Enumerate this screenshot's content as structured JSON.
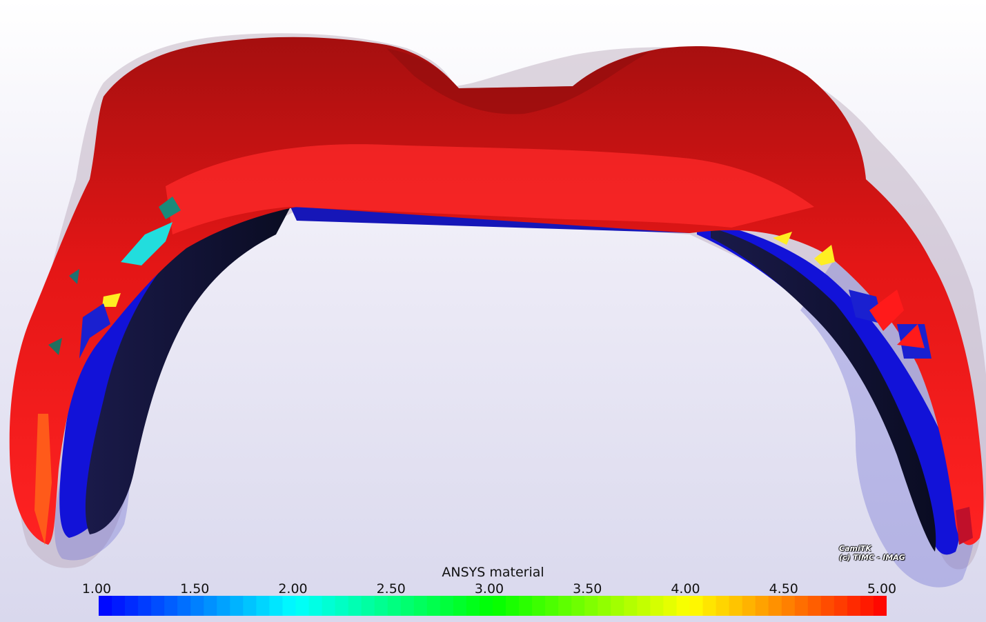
{
  "viewer": {
    "watermark_line1": "CamiTK",
    "watermark_line2": "(c) TIMC - IMAG"
  },
  "scalar_bar": {
    "title": "ANSYS material",
    "ticks": [
      "1.00",
      "1.50",
      "2.00",
      "2.50",
      "3.00",
      "3.50",
      "4.00",
      "4.50",
      "5.00"
    ],
    "range": [
      1.0,
      5.0
    ],
    "color_stops": [
      "#0000ff",
      "#00ffff",
      "#00ff00",
      "#ffff00",
      "#ff0000"
    ],
    "bands": 60
  },
  "colors": {
    "material_high": "#ee1111",
    "material_low": "#1010ee",
    "inner_dark": "#0c1030",
    "ghost": "#9a9ad8"
  }
}
